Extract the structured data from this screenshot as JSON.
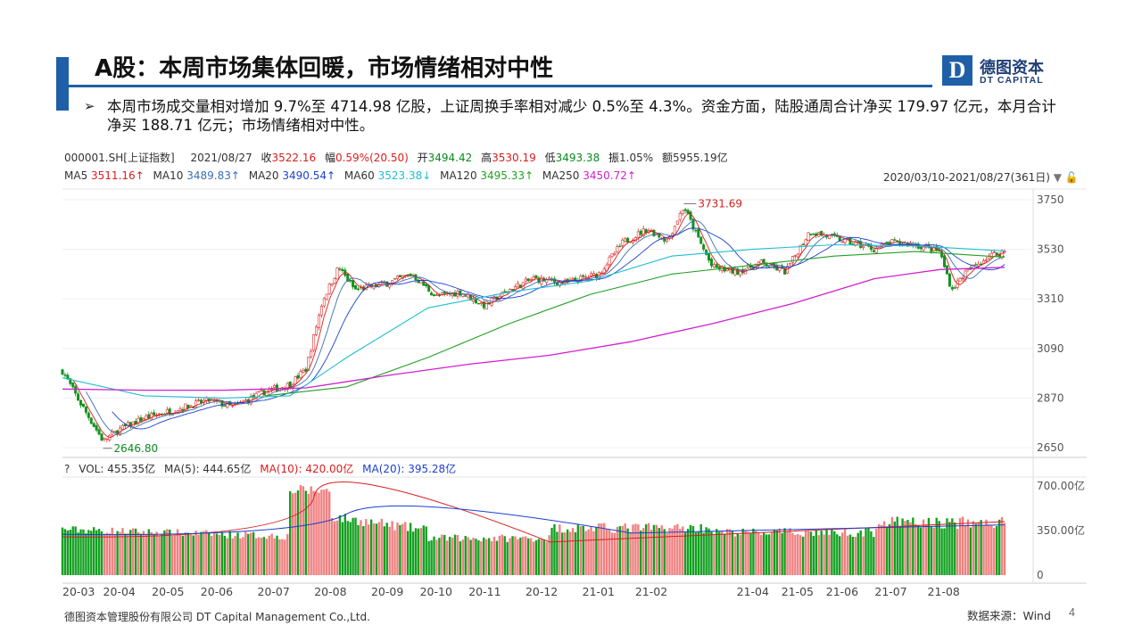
{
  "slide": {
    "title": "A股：本周市场集体回暖，市场情绪相对中性",
    "logo_cn": "德图资本",
    "logo_en": "DT CAPITAL",
    "logo_letter": "D",
    "bullet": "➢",
    "paragraph": "本周市场成交量相对增加 9.7%至 4714.98 亿股，上证周换手率相对减少 0.5%至 4.3%。资金方面，陆股通周合计净买 179.97 亿元，本月合计净买 188.71 亿元；市场情绪相对中性。",
    "footer_left": "德图资本管理股份有限公司  DT Capital  Management  Co.,Ltd.",
    "footer_right": "数据来源：Wind",
    "page_number": "4",
    "colors": {
      "accent": "#1f5fa8",
      "up": "#d81e1e",
      "down": "#0a8a1e"
    }
  },
  "quote": {
    "code": "000001.SH[上证指数]",
    "date": "2021/08/27",
    "close_label": "收",
    "close": "3522.16",
    "change_label": "幅",
    "change": "0.59%(20.50)",
    "open_label": "开",
    "open": "3494.42",
    "high_label": "高",
    "high": "3530.19",
    "low_label": "低",
    "low": "3493.38",
    "amp_label": "振",
    "amp": "1.05%",
    "amount_label": "额",
    "amount": "5955.19亿"
  },
  "ma_legend": [
    {
      "label": "MA5",
      "value": "3511.16↑",
      "color": "#d81e1e"
    },
    {
      "label": "MA10",
      "value": "3489.83↑",
      "color": "#3a6fb0"
    },
    {
      "label": "MA20",
      "value": "3490.54↑",
      "color": "#1c3fd0"
    },
    {
      "label": "MA60",
      "value": "3523.38↓",
      "color": "#1fbfd0"
    },
    {
      "label": "MA120",
      "value": "3495.33↑",
      "color": "#22a022"
    },
    {
      "label": "MA250",
      "value": "3450.72↑",
      "color": "#d020d0"
    }
  ],
  "date_range": "2020/03/10-2021/08/27(361日)",
  "range_icons": [
    "dropdown-icon",
    "lock-icon"
  ],
  "vol_legend": {
    "help": "?",
    "vol": "VOL: 455.35亿",
    "ma5": "MA(5): 444.65亿",
    "ma10": "MA(10): 420.00亿",
    "ma20": "MA(20): 395.28亿",
    "ma10_color": "#d81e1e",
    "ma20_color": "#1c3fd0"
  },
  "chart_data": {
    "type": "candlestick",
    "price_axis_ticks": [
      "3750",
      "3530",
      "3310",
      "3090",
      "2870",
      "2650"
    ],
    "price_ylim": [
      2650,
      3750
    ],
    "volume_axis_ticks": [
      "700.00亿",
      "350.00亿",
      "0"
    ],
    "volume_ylim": [
      0,
      700
    ],
    "x_tick_labels": [
      "20-03",
      "20-04",
      "20-05",
      "20-06",
      "20-07",
      "20-08",
      "20-09",
      "20-10",
      "20-11",
      "20-12",
      "21-01",
      "21-02",
      "21-04",
      "21-05",
      "21-06",
      "21-07",
      "21-08"
    ],
    "annotations": [
      {
        "text": "3731.69",
        "type": "high"
      },
      {
        "text": "2646.80",
        "type": "low"
      }
    ],
    "close_path": [
      [
        0,
        2990
      ],
      [
        0.02,
        2860
      ],
      [
        0.05,
        2680
      ],
      [
        0.07,
        2730
      ],
      [
        0.1,
        2780
      ],
      [
        0.14,
        2820
      ],
      [
        0.18,
        2860
      ],
      [
        0.21,
        2830
      ],
      [
        0.25,
        2900
      ],
      [
        0.28,
        2930
      ],
      [
        0.3,
        3000
      ],
      [
        0.32,
        3300
      ],
      [
        0.34,
        3450
      ],
      [
        0.36,
        3350
      ],
      [
        0.4,
        3380
      ],
      [
        0.43,
        3420
      ],
      [
        0.46,
        3320
      ],
      [
        0.49,
        3340
      ],
      [
        0.52,
        3280
      ],
      [
        0.55,
        3350
      ],
      [
        0.58,
        3400
      ],
      [
        0.62,
        3380
      ],
      [
        0.66,
        3420
      ],
      [
        0.69,
        3560
      ],
      [
        0.72,
        3620
      ],
      [
        0.745,
        3570
      ],
      [
        0.765,
        3720
      ],
      [
        0.78,
        3600
      ],
      [
        0.8,
        3450
      ],
      [
        0.83,
        3430
      ],
      [
        0.86,
        3470
      ],
      [
        0.89,
        3430
      ],
      [
        0.92,
        3610
      ],
      [
        0.95,
        3580
      ],
      [
        0.97,
        3560
      ],
      [
        1.0,
        3530
      ],
      [
        1.02,
        3560
      ],
      [
        1.05,
        3550
      ],
      [
        1.08,
        3520
      ],
      [
        1.095,
        3350
      ],
      [
        1.11,
        3420
      ],
      [
        1.14,
        3500
      ],
      [
        1.16,
        3522
      ]
    ],
    "ma250_path": [
      [
        0,
        2910
      ],
      [
        0.1,
        2905
      ],
      [
        0.2,
        2905
      ],
      [
        0.3,
        2915
      ],
      [
        0.4,
        2970
      ],
      [
        0.5,
        3020
      ],
      [
        0.6,
        3060
      ],
      [
        0.7,
        3120
      ],
      [
        0.8,
        3200
      ],
      [
        0.9,
        3290
      ],
      [
        1.0,
        3400
      ],
      [
        1.08,
        3440
      ],
      [
        1.16,
        3450
      ]
    ],
    "ma120_path": [
      [
        0.25,
        2880
      ],
      [
        0.35,
        2920
      ],
      [
        0.45,
        3050
      ],
      [
        0.55,
        3200
      ],
      [
        0.65,
        3330
      ],
      [
        0.75,
        3420
      ],
      [
        0.85,
        3460
      ],
      [
        0.95,
        3500
      ],
      [
        1.05,
        3520
      ],
      [
        1.16,
        3495
      ]
    ],
    "ma60_path": [
      [
        0,
        2960
      ],
      [
        0.1,
        2880
      ],
      [
        0.2,
        2870
      ],
      [
        0.28,
        2880
      ],
      [
        0.35,
        3050
      ],
      [
        0.45,
        3270
      ],
      [
        0.55,
        3340
      ],
      [
        0.65,
        3390
      ],
      [
        0.75,
        3500
      ],
      [
        0.85,
        3530
      ],
      [
        0.95,
        3550
      ],
      [
        1.05,
        3545
      ],
      [
        1.16,
        3523
      ]
    ]
  }
}
